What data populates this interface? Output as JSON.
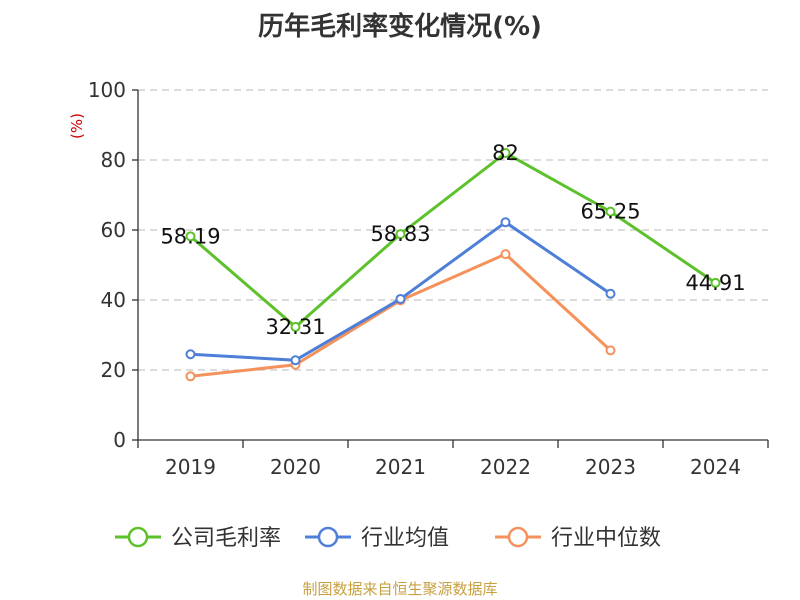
{
  "chart_data": {
    "type": "line",
    "title": "历年毛利率变化情况(%)",
    "ylabel": "(%)",
    "xlabel": "",
    "categories": [
      "2019",
      "2020",
      "2021",
      "2022",
      "2023",
      "2024"
    ],
    "ylim": [
      0,
      100
    ],
    "yticks": [
      0,
      20,
      40,
      60,
      80,
      100
    ],
    "grid": true,
    "legend_position": "bottom",
    "series": [
      {
        "name": "公司毛利率",
        "color": "#5dc12b",
        "values": [
          58.19,
          32.31,
          58.83,
          82,
          65.25,
          44.91
        ],
        "labels": [
          "58.19",
          "32.31",
          "58.83",
          "82",
          "65.25",
          "44.91"
        ]
      },
      {
        "name": "行业均值",
        "color": "#4e7fd8",
        "values": [
          24.5,
          22.8,
          40.3,
          62.2,
          41.8,
          null
        ]
      },
      {
        "name": "行业中位数",
        "color": "#f5915a",
        "values": [
          18.2,
          21.5,
          39.9,
          53.1,
          25.6,
          null
        ]
      }
    ]
  },
  "source": "制图数据来自恒生聚源数据库"
}
